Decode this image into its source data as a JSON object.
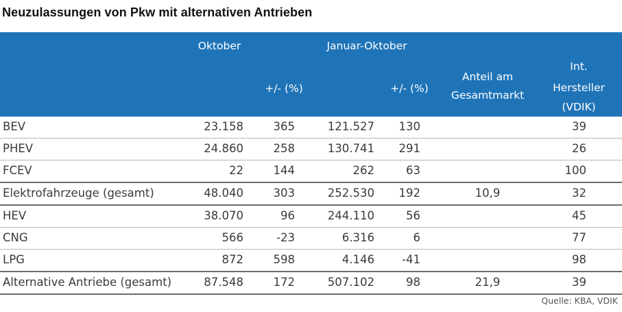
{
  "title": "Neuzulassungen von Pkw mit alternativen Antrieben",
  "header": {
    "oktober": "Oktober",
    "januar_oktober": "Januar-Oktober",
    "change_1": "+/- (%)",
    "change_2": "+/- (%)",
    "anteil_line1": "Anteil am",
    "anteil_line2": "Gesamtmarkt",
    "int_line1": "Int.",
    "int_line2": "Hersteller",
    "int_line3": "(VDIK)"
  },
  "rows": [
    {
      "label": "BEV",
      "oktober": "23.158",
      "change_okt": "365",
      "jan_okt": "121.527",
      "change_jan": "130",
      "anteil": "",
      "vdik": "39"
    },
    {
      "label": "PHEV",
      "oktober": "24.860",
      "change_okt": "258",
      "jan_okt": "130.741",
      "change_jan": "291",
      "anteil": "",
      "vdik": "26"
    },
    {
      "label": "FCEV",
      "oktober": "22",
      "change_okt": "144",
      "jan_okt": "262",
      "change_jan": "63",
      "anteil": "",
      "vdik": "100"
    },
    {
      "label": "Elektrofahrzeuge (gesamt)",
      "oktober": "48.040",
      "change_okt": "303",
      "jan_okt": "252.530",
      "change_jan": "192",
      "anteil": "10,9",
      "vdik": "32"
    },
    {
      "label": "HEV",
      "oktober": "38.070",
      "change_okt": "96",
      "jan_okt": "244.110",
      "change_jan": "56",
      "anteil": "",
      "vdik": "45"
    },
    {
      "label": "CNG",
      "oktober": "566",
      "change_okt": "-23",
      "jan_okt": "6.316",
      "change_jan": "6",
      "anteil": "",
      "vdik": "77"
    },
    {
      "label": "LPG",
      "oktober": "872",
      "change_okt": "598",
      "jan_okt": "4.146",
      "change_jan": "-41",
      "anteil": "",
      "vdik": "98"
    },
    {
      "label": "Alternative Antriebe (gesamt)",
      "oktober": "87.548",
      "change_okt": "172",
      "jan_okt": "507.102",
      "change_jan": "98",
      "anteil": "21,9",
      "vdik": "39"
    }
  ],
  "source": "Quelle: KBA, VDIK"
}
